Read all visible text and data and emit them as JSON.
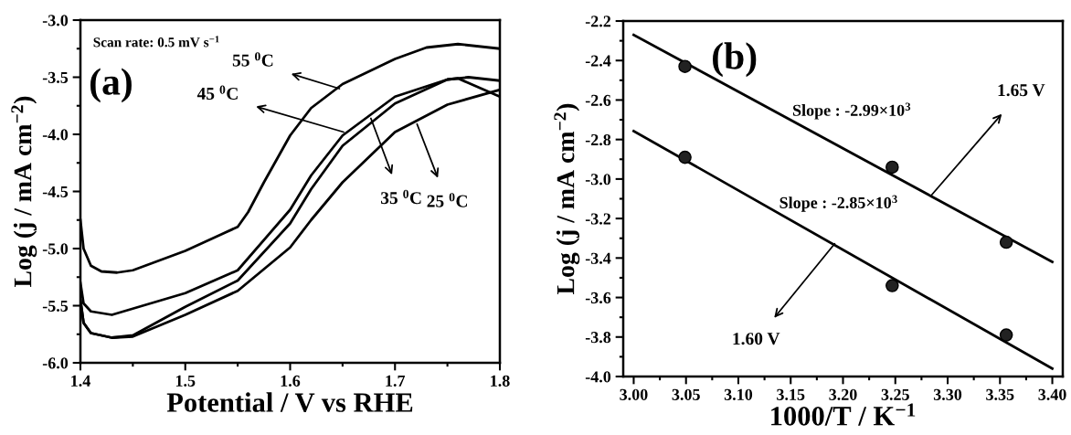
{
  "chart_data": [
    {
      "type": "line",
      "xlabel": "Potential / V vs RHE",
      "ylabel": "Log (j / mA cm$^{−2}$)",
      "xlim": [
        1.4,
        1.8
      ],
      "ylim": [
        -6.0,
        -3.0
      ],
      "xticks": [
        1.4,
        1.5,
        1.6,
        1.7,
        1.8
      ],
      "yticks": [
        {
          "value": -6,
          "label": "-6.0"
        },
        -5.5,
        {
          "value": -5,
          "label": "-5.0"
        },
        -4.5,
        {
          "value": -4,
          "label": "-4.0"
        },
        -3.5,
        {
          "value": -3,
          "label": "-3.0"
        }
      ],
      "grid": false,
      "legend": false,
      "marker": "none",
      "line_style": "solid",
      "annotations": [
        "Scan rate: 0.5 mV s$^{−1}$",
        "(a)",
        {
          "text": "55 $^{0}$C",
          "x": 1.647,
          "y": -3.6
        },
        {
          "text": "45 $^{0}$C",
          "x": 1.651,
          "y": -3.98
        },
        {
          "text": "35 $^{0}$C",
          "x": 1.677,
          "y": -3.86
        },
        {
          "text": "25 $^{0}$C",
          "x": 1.721,
          "y": -3.91
        }
      ],
      "series": [
        {
          "color": "#000000",
          "x": [
            1.4,
            1.403,
            1.41,
            1.42,
            1.435,
            1.45,
            1.5,
            1.55,
            1.56,
            1.575,
            1.6,
            1.62,
            1.65,
            1.7,
            1.73,
            1.76,
            1.8
          ],
          "values": [
            -4.75,
            -5.0,
            -5.15,
            -5.2,
            -5.21,
            -5.19,
            -5.02,
            -4.81,
            -4.68,
            -4.42,
            -4.01,
            -3.77,
            -3.56,
            -3.34,
            -3.24,
            -3.21,
            -3.25
          ]
        },
        {
          "color": "#000000",
          "x": [
            1.4,
            1.403,
            1.41,
            1.43,
            1.5,
            1.55,
            1.6,
            1.62,
            1.65,
            1.7,
            1.75,
            1.77,
            1.8
          ],
          "values": [
            -5.3,
            -5.48,
            -5.55,
            -5.58,
            -5.39,
            -5.19,
            -4.66,
            -4.36,
            -4.01,
            -3.67,
            -3.52,
            -3.5,
            -3.53
          ]
        },
        {
          "color": "#000000",
          "x": [
            1.4,
            1.403,
            1.41,
            1.43,
            1.45,
            1.5,
            1.55,
            1.6,
            1.62,
            1.65,
            1.7,
            1.75,
            1.76,
            1.8
          ],
          "values": [
            -5.45,
            -5.65,
            -5.74,
            -5.78,
            -5.76,
            -5.51,
            -5.28,
            -4.78,
            -4.48,
            -4.1,
            -3.73,
            -3.52,
            -3.51,
            -3.67
          ]
        },
        {
          "color": "#000000",
          "x": [
            1.4,
            1.403,
            1.41,
            1.43,
            1.45,
            1.5,
            1.55,
            1.6,
            1.62,
            1.65,
            1.7,
            1.75,
            1.8
          ],
          "values": [
            -5.45,
            -5.65,
            -5.74,
            -5.78,
            -5.77,
            -5.58,
            -5.37,
            -4.99,
            -4.75,
            -4.42,
            -3.98,
            -3.74,
            -3.61
          ]
        }
      ]
    },
    {
      "type": "scatter",
      "xlabel": "1000/T / K$^{−1}$",
      "ylabel": "Log (j / mA cm$^{−2}$)",
      "xlim": [
        2.99,
        3.41
      ],
      "ylim": [
        -4.0,
        -2.2
      ],
      "xticks": [
        {
          "value": 3.0,
          "label": "3.00"
        },
        {
          "value": 3.05,
          "label": "3.05"
        },
        {
          "value": 3.1,
          "label": "3.10"
        },
        {
          "value": 3.15,
          "label": "3.15"
        },
        {
          "value": 3.2,
          "label": "3.20"
        },
        {
          "value": 3.25,
          "label": "3.25"
        },
        {
          "value": 3.3,
          "label": "3.30"
        },
        {
          "value": 3.35,
          "label": "3.35"
        },
        {
          "value": 3.4,
          "label": "3.40"
        }
      ],
      "yticks": [
        {
          "value": -4,
          "label": "-4.0"
        },
        -3.8,
        -3.6,
        -3.4,
        -3.2,
        {
          "value": -3,
          "label": "-3.0"
        },
        -2.8,
        -2.6,
        -2.4,
        -2.2
      ],
      "grid": false,
      "legend": false,
      "annotations": [
        "(b)",
        "Slope : -2.99×10$^{3}$",
        "Slope : -2.85×10$^{3}$",
        {
          "text": "1.65 V",
          "x": 3.284,
          "y": -3.085
        },
        {
          "text": "1.60 V",
          "x": 3.192,
          "y": -3.328
        }
      ],
      "series": [
        {
          "type": "scatter",
          "marker": "circle",
          "color": "#222222",
          "x": [
            3.049,
            3.247,
            3.356
          ],
          "values": [
            -2.43,
            -2.94,
            -3.32
          ]
        },
        {
          "type": "scatter",
          "marker": "circle",
          "color": "#222222",
          "x": [
            3.049,
            3.247,
            3.356
          ],
          "values": [
            -2.89,
            -3.54,
            -3.79
          ]
        },
        {
          "type": "line",
          "color": "#000000",
          "line_style": "solid",
          "x": [
            3.0,
            3.4
          ],
          "values": [
            -2.27,
            -3.42
          ]
        },
        {
          "type": "line",
          "color": "#000000",
          "line_style": "solid",
          "x": [
            3.0,
            3.4
          ],
          "values": [
            -2.757,
            -3.96
          ]
        }
      ]
    }
  ]
}
